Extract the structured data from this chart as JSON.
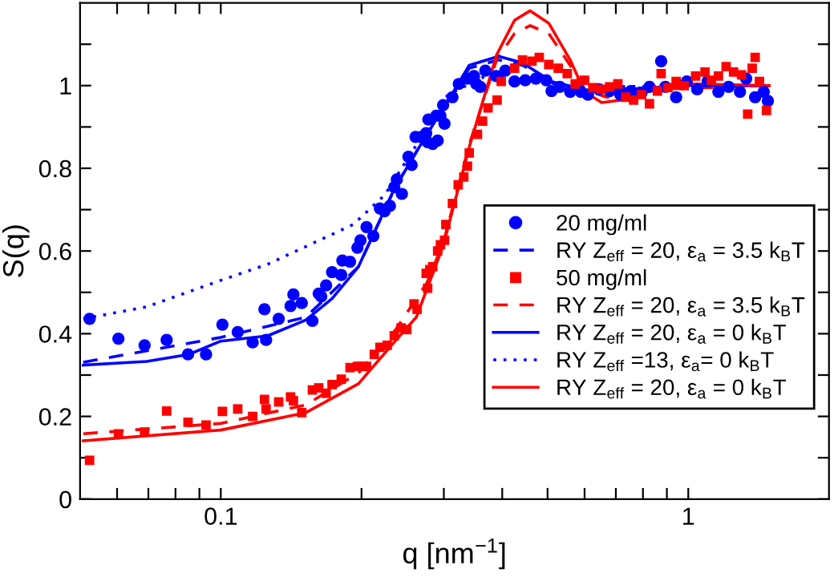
{
  "chart_data": {
    "type": "scatter",
    "xlabel": "q [nm$^{−1}$]",
    "ylabel": "S(q)",
    "log": "x",
    "xlim": [
      0.05,
      2
    ],
    "ylim": [
      0,
      1.2
    ],
    "xticks": [
      {
        "value": 0.06,
        "label": null
      },
      {
        "value": 0.07,
        "label": null
      },
      {
        "value": 0.08,
        "label": null
      },
      {
        "value": 0.09,
        "label": null
      },
      0.1,
      {
        "value": 0.2,
        "label": null
      },
      {
        "value": 0.3,
        "label": null
      },
      {
        "value": 0.4,
        "label": null
      },
      {
        "value": 0.5,
        "label": null
      },
      {
        "value": 0.6,
        "label": null
      },
      {
        "value": 0.7,
        "label": null
      },
      {
        "value": 0.8,
        "label": null
      },
      {
        "value": 0.9,
        "label": null
      },
      1
    ],
    "yticks": [
      0,
      {
        "value": 0.1,
        "label": null
      },
      0.2,
      {
        "value": 0.3,
        "label": null
      },
      0.4,
      {
        "value": 0.5,
        "label": null
      },
      0.6,
      {
        "value": 0.7,
        "label": null
      },
      0.8,
      {
        "value": 0.9,
        "label": null
      },
      1,
      {
        "value": 1.1,
        "label": null
      }
    ],
    "grid": false,
    "legend": "lower right",
    "series": [
      {
        "name": "20 mg/ml",
        "marker": "circle",
        "color": "#0000ff",
        "x": [
          0.0524,
          0.0604,
          0.0687,
          0.0766,
          0.0851,
          0.093,
          0.1008,
          0.1087,
          0.117,
          0.124,
          0.125,
          0.133,
          0.141,
          0.143,
          0.149,
          0.157,
          0.162,
          0.164,
          0.168,
          0.173,
          0.181,
          0.182,
          0.189,
          0.196,
          0.199,
          0.205,
          0.212,
          0.219,
          0.224,
          0.23,
          0.235,
          0.238,
          0.244,
          0.252,
          0.256,
          0.261,
          0.268,
          0.275,
          0.277,
          0.278,
          0.284,
          0.289,
          0.291,
          0.295,
          0.299,
          0.301,
          0.313,
          0.323,
          0.337,
          0.348,
          0.352,
          0.359,
          0.368,
          0.388,
          0.406,
          0.425,
          0.448,
          0.472,
          0.497,
          0.51,
          0.531,
          0.559,
          0.589,
          0.61,
          0.644,
          0.679,
          0.716,
          0.754,
          0.794,
          0.826,
          0.875,
          0.893,
          0.942,
          0.993,
          1.045,
          1.1,
          1.16,
          1.22,
          1.29,
          1.33,
          1.39,
          1.45,
          1.48
        ],
        "values": [
          0.436,
          0.388,
          0.372,
          0.385,
          0.35,
          0.35,
          0.422,
          0.404,
          0.379,
          0.459,
          0.385,
          0.436,
          0.467,
          0.495,
          0.474,
          0.431,
          0.497,
          0.49,
          0.517,
          0.549,
          0.542,
          0.577,
          0.574,
          0.608,
          0.626,
          0.658,
          0.636,
          0.703,
          0.696,
          0.709,
          0.754,
          0.773,
          0.738,
          0.828,
          0.808,
          0.876,
          0.876,
          0.885,
          0.863,
          0.918,
          0.859,
          0.927,
          0.867,
          0.927,
          0.953,
          0.908,
          0.972,
          1.004,
          1.017,
          1.023,
          1.004,
          0.997,
          1.036,
          1.023,
          1.036,
          1.01,
          1.013,
          1.017,
          1.013,
          0.987,
          0.997,
          0.985,
          0.985,
          0.978,
          0.991,
          0.987,
          0.978,
          0.987,
          0.982,
          0.997,
          1.059,
          0.997,
          0.972,
          1.01,
          0.991,
          1.01,
          0.985,
          0.997,
          0.985,
          1.017,
          0.972,
          0.985,
          0.963
        ]
      },
      {
        "name": "RY Z$_{eff}$ = 20, ε$_{a}$ = 3.5 k$_{B}$T",
        "type": "line",
        "line_style": "dashed",
        "color": "#0000ff",
        "x": [
          0.0508,
          0.1,
          0.152,
          0.197,
          0.236,
          0.276,
          0.34,
          0.393,
          0.442,
          0.51,
          0.618,
          0.97,
          1.49
        ],
        "values": [
          0.331,
          0.391,
          0.44,
          0.562,
          0.754,
          0.882,
          1.042,
          1.062,
          1.049,
          1.01,
          0.987,
          1.0,
          1.0
        ]
      },
      {
        "name": "50 mg/ml",
        "marker": "square",
        "color": "#ff0000",
        "x": [
          0.0524,
          0.0604,
          0.0687,
          0.0766,
          0.0851,
          0.093,
          0.1008,
          0.1087,
          0.117,
          0.124,
          0.125,
          0.133,
          0.141,
          0.143,
          0.149,
          0.157,
          0.162,
          0.168,
          0.173,
          0.181,
          0.189,
          0.196,
          0.2,
          0.205,
          0.213,
          0.219,
          0.227,
          0.235,
          0.243,
          0.25,
          0.259,
          0.263,
          0.275,
          0.277,
          0.28,
          0.284,
          0.291,
          0.295,
          0.301,
          0.303,
          0.313,
          0.322,
          0.331,
          0.337,
          0.34,
          0.354,
          0.363,
          0.373,
          0.39,
          0.398,
          0.425,
          0.442,
          0.463,
          0.48,
          0.503,
          0.527,
          0.551,
          0.573,
          0.6,
          0.625,
          0.653,
          0.679,
          0.707,
          0.735,
          0.764,
          0.794,
          0.826,
          0.859,
          0.875,
          0.905,
          0.942,
          0.98,
          1.037,
          1.086,
          1.12,
          1.16,
          1.205,
          1.25,
          1.3,
          1.34,
          1.37,
          1.39,
          1.42,
          1.47
        ],
        "values": [
          0.094,
          0.158,
          0.162,
          0.213,
          0.186,
          0.179,
          0.212,
          0.218,
          0.2,
          0.241,
          0.218,
          0.235,
          0.247,
          0.238,
          0.209,
          0.264,
          0.269,
          0.256,
          0.277,
          0.29,
          0.318,
          0.321,
          0.321,
          0.321,
          0.35,
          0.367,
          0.372,
          0.395,
          0.414,
          0.41,
          0.472,
          0.459,
          0.546,
          0.51,
          0.555,
          0.562,
          0.6,
          0.615,
          0.626,
          0.664,
          0.715,
          0.76,
          0.779,
          0.805,
          0.837,
          0.882,
          0.914,
          0.946,
          0.965,
          1.01,
          1.042,
          1.062,
          1.059,
          1.068,
          1.051,
          1.042,
          1.029,
          1.004,
          1.013,
          0.995,
          0.991,
          0.997,
          1.004,
          0.972,
          0.965,
          0.978,
          0.956,
          0.987,
          1.029,
          0.995,
          1.01,
          1.0,
          1.023,
          1.033,
          1.013,
          1.023,
          1.046,
          1.033,
          1.026,
          0.931,
          1.042,
          1.068,
          1.01,
          0.94
        ]
      },
      {
        "name": "RY Z$_{eff}$ = 20, ε$_{a}$ = 3.5 k$_{B}$T",
        "type": "line",
        "line_style": "dashed",
        "color": "#ff0000",
        "x": [
          0.0508,
          0.1,
          0.152,
          0.197,
          0.236,
          0.276,
          0.299,
          0.341,
          0.389,
          0.425,
          0.459,
          0.503,
          0.559,
          0.6,
          0.669,
          0.85,
          1.49
        ],
        "values": [
          0.158,
          0.183,
          0.228,
          0.305,
          0.408,
          0.523,
          0.619,
          0.862,
          1.062,
          1.126,
          1.145,
          1.126,
          1.049,
          0.991,
          0.972,
          0.991,
          1.0
        ]
      },
      {
        "name": "RY Z$_{eff}$ = 20, ε$_{a}$ = 0 k$_{B}$T",
        "type": "line",
        "line_style": "solid",
        "color": "#0000ff",
        "x": [
          0.0508,
          0.0694,
          0.0855,
          0.1,
          0.126,
          0.152,
          0.173,
          0.197,
          0.236,
          0.276,
          0.307,
          0.34,
          0.393,
          0.442,
          0.51,
          0.618,
          0.744,
          0.97,
          1.49
        ],
        "values": [
          0.324,
          0.333,
          0.35,
          0.382,
          0.395,
          0.433,
          0.485,
          0.562,
          0.754,
          0.882,
          0.965,
          1.049,
          1.071,
          1.055,
          1.01,
          0.985,
          0.991,
          1.0,
          1.0
        ]
      },
      {
        "name": "RY Z$_{eff}$ =13, ε$_{a}$= 0 k$_{B}$T",
        "type": "line",
        "line_style": "dotted",
        "color": "#0000ff",
        "x": [
          0.0508,
          0.0694,
          0.1,
          0.126,
          0.192,
          0.224,
          0.262,
          0.306,
          0.368,
          0.442,
          0.573,
          1.49
        ],
        "values": [
          0.436,
          0.465,
          0.529,
          0.568,
          0.664,
          0.735,
          0.856,
          0.978,
          1.023,
          1.017,
          0.997,
          1.0
        ]
      },
      {
        "name": "RY Z$_{eff}$ = 20, ε$_{a}$ = 0 k$_{B}$T",
        "type": "line",
        "line_style": "solid",
        "color": "#ff0000",
        "x": [
          0.0508,
          0.1,
          0.152,
          0.197,
          0.236,
          0.262,
          0.299,
          0.341,
          0.389,
          0.425,
          0.459,
          0.503,
          0.559,
          0.6,
          0.653,
          0.72,
          0.85,
          1.037,
          1.49
        ],
        "values": [
          0.141,
          0.167,
          0.209,
          0.279,
          0.382,
          0.44,
          0.613,
          0.856,
          1.074,
          1.158,
          1.181,
          1.151,
          1.062,
          0.985,
          0.959,
          0.965,
          0.991,
          1.004,
          1.0
        ]
      }
    ]
  }
}
